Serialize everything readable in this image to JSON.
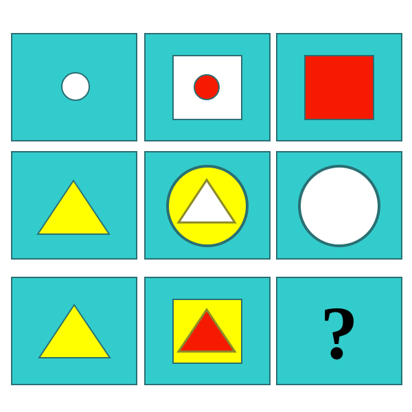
{
  "puzzle": {
    "title": "",
    "colors": {
      "cell_background": "#33CCCC",
      "cell_border": "#2A6F73",
      "white": "#FFFFFF",
      "red": "#F51A00",
      "yellow": "#FFFF00",
      "outline": "#2A6F73",
      "question_mark": "#000000"
    },
    "rows": [
      {
        "cells": [
          {
            "outer": {
              "shape": "circle",
              "fill": "white",
              "size": "small"
            },
            "inner": null
          },
          {
            "outer": {
              "shape": "square",
              "fill": "white"
            },
            "inner": {
              "shape": "circle",
              "fill": "red"
            }
          },
          {
            "outer": {
              "shape": "square",
              "fill": "red"
            },
            "inner": null
          }
        ]
      },
      {
        "cells": [
          {
            "outer": {
              "shape": "triangle",
              "fill": "yellow"
            },
            "inner": null
          },
          {
            "outer": {
              "shape": "circle",
              "fill": "yellow"
            },
            "inner": {
              "shape": "triangle",
              "fill": "white"
            }
          },
          {
            "outer": {
              "shape": "circle",
              "fill": "white",
              "size": "large"
            },
            "inner": null
          }
        ]
      },
      {
        "cells": [
          {
            "outer": {
              "shape": "triangle",
              "fill": "yellow"
            },
            "inner": null
          },
          {
            "outer": {
              "shape": "square",
              "fill": "yellow"
            },
            "inner": {
              "shape": "triangle",
              "fill": "red"
            }
          },
          {
            "outer": null,
            "inner": null,
            "question_mark": "?"
          }
        ]
      }
    ]
  }
}
